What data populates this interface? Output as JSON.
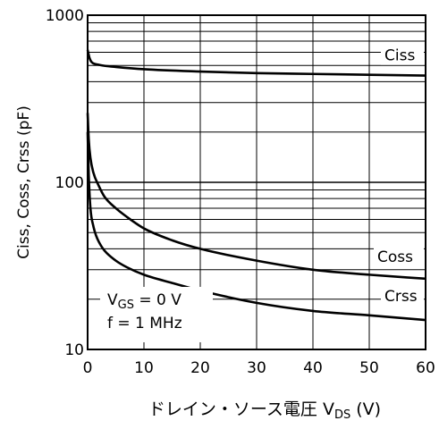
{
  "chart_data": {
    "type": "line",
    "title": "",
    "xlabel": {
      "main": "ドレイン・ソース電圧 ",
      "var": "V",
      "sub": "DS",
      "unit": " (V)"
    },
    "ylabel": "Ciss, Coss, Crss (pF)",
    "xlim": [
      0,
      60
    ],
    "ylim": [
      10,
      1000
    ],
    "yscale": "log",
    "grid": true,
    "x_ticks": [
      "0",
      "10",
      "20",
      "30",
      "40",
      "50",
      "60"
    ],
    "y_ticks": [
      "10",
      "100",
      "1000"
    ],
    "conditions": {
      "vgs_var": "V",
      "vgs_sub": "GS",
      "vgs_value": " = 0 V",
      "freq": "f = 1 MHz"
    },
    "series": [
      {
        "name": "Ciss",
        "x": [
          0,
          0.3,
          0.6,
          1,
          2,
          3,
          5,
          10,
          20,
          30,
          40,
          50,
          60
        ],
        "y": [
          620,
          560,
          530,
          515,
          505,
          498,
          490,
          475,
          460,
          450,
          445,
          440,
          435
        ]
      },
      {
        "name": "Coss",
        "x": [
          0,
          0.2,
          0.5,
          1,
          2,
          3,
          5,
          7,
          10,
          15,
          20,
          30,
          40,
          50,
          60
        ],
        "y": [
          260,
          180,
          140,
          115,
          95,
          82,
          70,
          62,
          53,
          45,
          40,
          34,
          30,
          28,
          26.5
        ]
      },
      {
        "name": "Crss",
        "x": [
          0,
          0.2,
          0.5,
          1,
          1.5,
          2,
          3,
          5,
          7,
          10,
          15,
          20,
          30,
          40,
          50,
          60
        ],
        "y": [
          200,
          110,
          70,
          55,
          48,
          44,
          39,
          34,
          31,
          28,
          25,
          22.5,
          19,
          17,
          16,
          15
        ]
      }
    ]
  }
}
